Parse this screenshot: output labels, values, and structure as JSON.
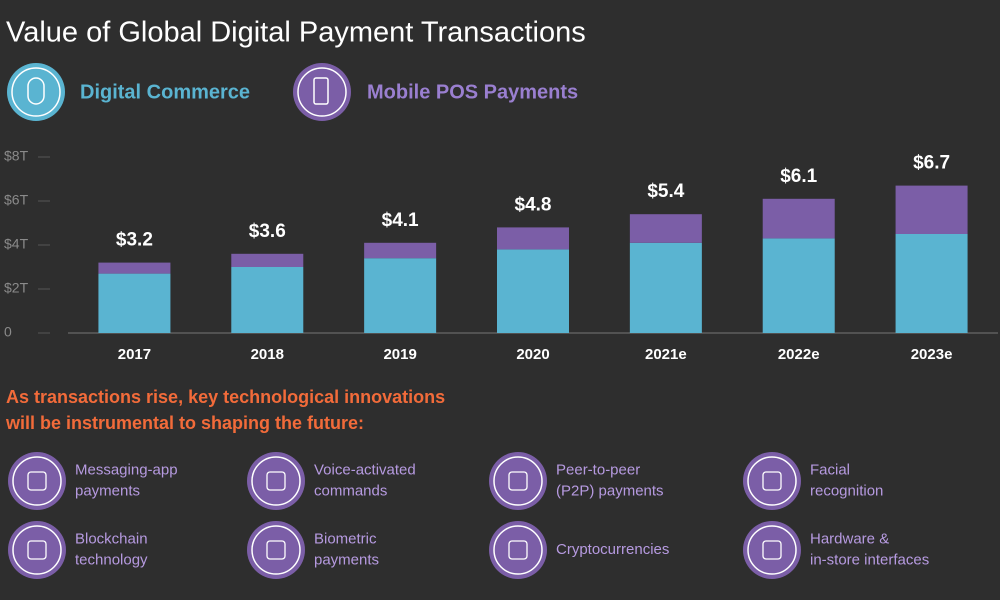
{
  "chart_data": {
    "type": "bar",
    "stacked": true,
    "title": "Value of Global Digital Payment Transactions",
    "categories": [
      "2017",
      "2018",
      "2019",
      "2020",
      "2021e",
      "2022e",
      "2023e"
    ],
    "series": [
      {
        "name": "Digital Commerce",
        "color": "#5ab4d1",
        "values": [
          2.7,
          3.0,
          3.4,
          3.8,
          4.1,
          4.3,
          4.5
        ]
      },
      {
        "name": "Mobile POS Payments",
        "color": "#7b5ea7",
        "values": [
          0.5,
          0.6,
          0.7,
          1.0,
          1.3,
          1.8,
          2.2
        ]
      }
    ],
    "totals": [
      3.2,
      3.6,
      4.1,
      4.8,
      5.4,
      6.1,
      6.7
    ],
    "total_labels": [
      "$3.2",
      "$3.6",
      "$4.1",
      "$4.8",
      "$5.4",
      "$6.1",
      "$6.7"
    ],
    "ylim": [
      0,
      8
    ],
    "yticks": [
      0,
      {
        "value": 2,
        "label": "$2T"
      },
      {
        "value": 4,
        "label": "$4T"
      },
      {
        "value": 6,
        "label": "$6T"
      },
      {
        "value": 8,
        "label": "$8T"
      }
    ],
    "grid": false
  },
  "innovations": {
    "heading_lines": [
      "As transactions rise, key technological innovations",
      "will be instrumental to shaping the future:"
    ],
    "items": [
      {
        "lines": [
          "Messaging-app",
          "payments"
        ]
      },
      {
        "lines": [
          "Voice-activated",
          "commands"
        ]
      },
      {
        "lines": [
          "Peer-to-peer",
          "(P2P) payments"
        ]
      },
      {
        "lines": [
          "Facial",
          "recognition"
        ]
      },
      {
        "lines": [
          "Blockchain",
          "technology"
        ]
      },
      {
        "lines": [
          "Biometric",
          "payments"
        ]
      },
      {
        "lines": [
          "Cryptocurrencies"
        ]
      },
      {
        "lines": [
          "Hardware &",
          "in-store interfaces"
        ]
      }
    ]
  }
}
